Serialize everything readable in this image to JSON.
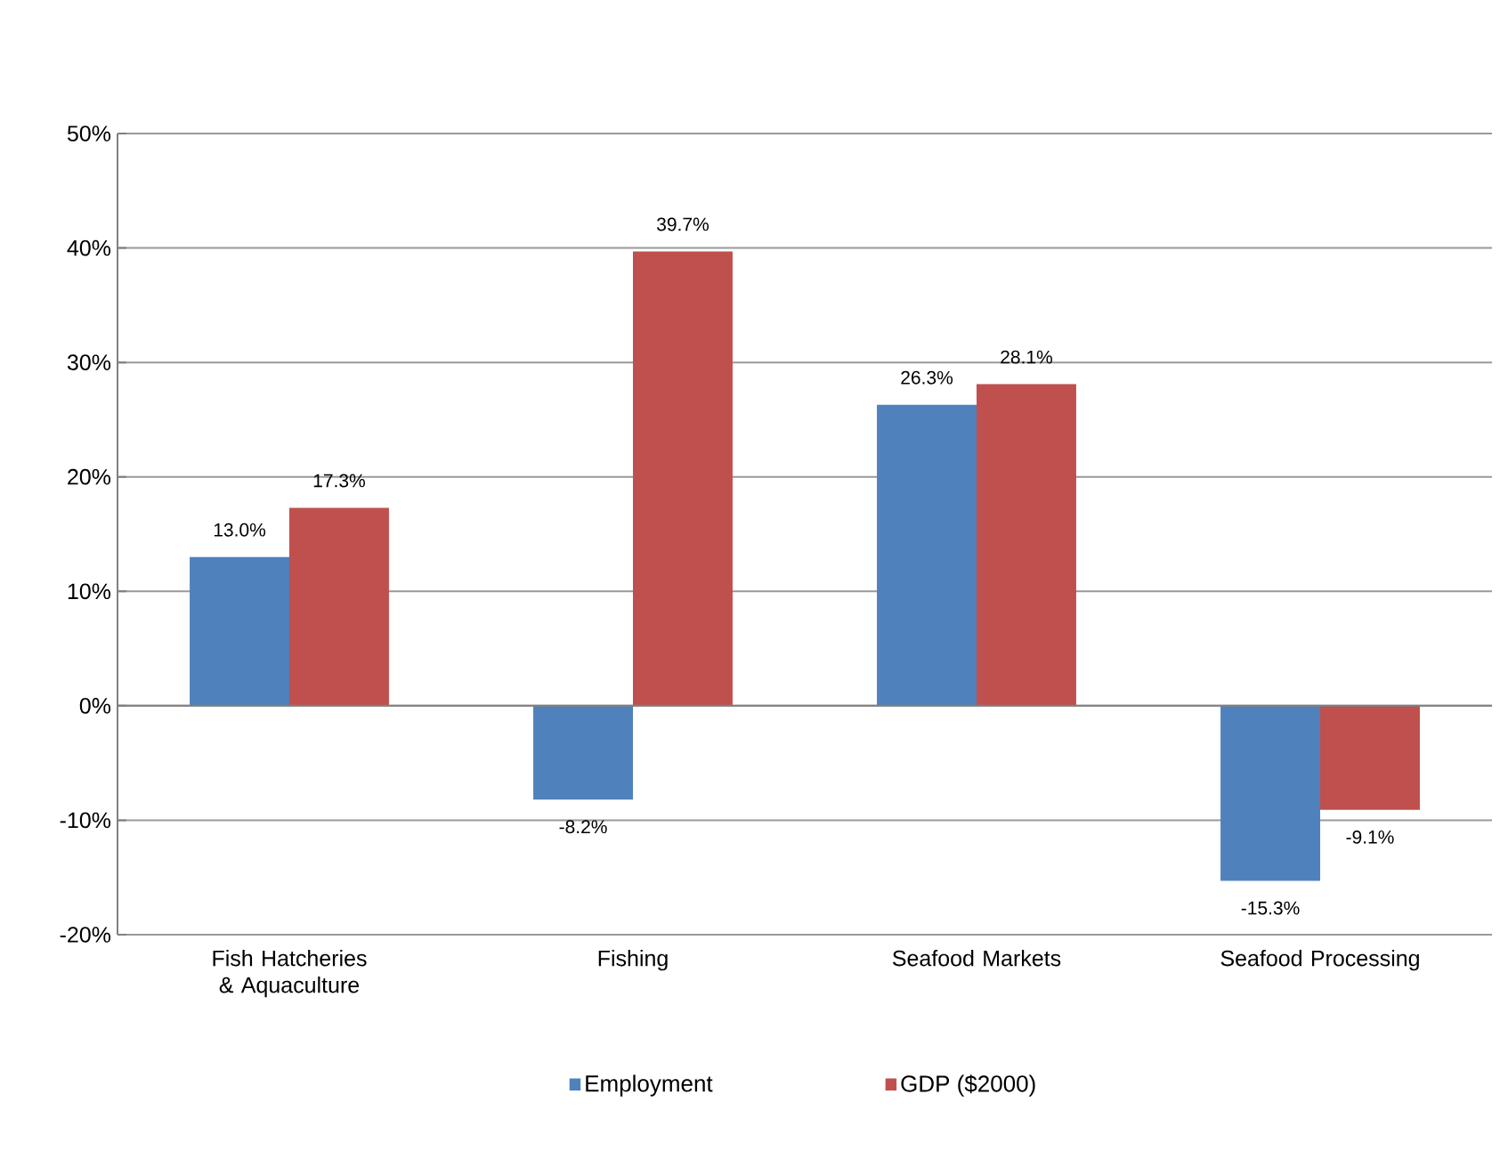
{
  "chart_data": {
    "type": "bar",
    "categories": [
      "Fish Hatcheries & Aquaculture",
      "Fishing",
      "Seafood Markets",
      "Seafood Processing"
    ],
    "series": [
      {
        "name": "Employment",
        "color": "#4f81bd",
        "values": [
          13.0,
          -8.2,
          26.3,
          -15.3
        ],
        "value_labels": [
          "13.0%",
          "-8.2%",
          "26.3%",
          "-15.3%"
        ]
      },
      {
        "name": "GDP ($2000)",
        "color": "#c0504d",
        "values": [
          17.3,
          39.7,
          28.1,
          -9.1
        ],
        "value_labels": [
          "17.3%",
          "39.7%",
          "28.1%",
          "-9.1%"
        ]
      }
    ],
    "ylim": [
      -20,
      50
    ],
    "yticks": [
      {
        "value": -20,
        "label": "-20%"
      },
      {
        "value": -10,
        "label": "-10%"
      },
      {
        "value": 0,
        "label": "0%"
      },
      {
        "value": 10,
        "label": "10%"
      },
      {
        "value": 20,
        "label": "20%"
      },
      {
        "value": 30,
        "label": "30%"
      },
      {
        "value": 40,
        "label": "40%"
      },
      {
        "value": 50,
        "label": "50%"
      }
    ],
    "grid": "y",
    "legend": "bottom"
  }
}
